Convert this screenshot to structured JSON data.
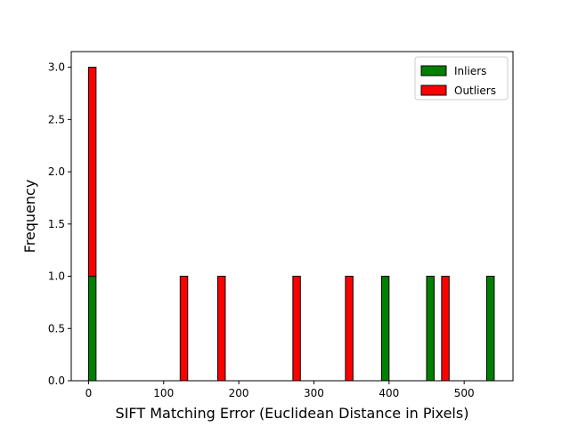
{
  "chart_data": {
    "type": "bar",
    "subtype": "stacked-histogram",
    "title": "",
    "xlabel": "SIFT Matching Error (Euclidean Distance in Pixels)",
    "ylabel": "Frequency",
    "xlim": [
      -23,
      565
    ],
    "ylim": [
      0,
      3.15
    ],
    "xticks": [
      0,
      100,
      200,
      300,
      400,
      500
    ],
    "yticks": [
      0.0,
      0.5,
      1.0,
      1.5,
      2.0,
      2.5,
      3.0
    ],
    "xtick_labels": [
      "0",
      "100",
      "200",
      "300",
      "400",
      "500"
    ],
    "ytick_labels": [
      "0.0",
      "0.5",
      "1.0",
      "1.5",
      "2.0",
      "2.5",
      "3.0"
    ],
    "bin_width": 10,
    "legend_position": "top-right",
    "series": [
      {
        "name": "Inliers",
        "color": "#008000",
        "bins": [
          {
            "x": 0,
            "count": 1
          },
          {
            "x": 390,
            "count": 1
          },
          {
            "x": 450,
            "count": 1
          },
          {
            "x": 530,
            "count": 1
          }
        ]
      },
      {
        "name": "Outliers",
        "color": "#ff0000",
        "bins": [
          {
            "x": 0,
            "count": 2
          },
          {
            "x": 122,
            "count": 1
          },
          {
            "x": 172,
            "count": 1
          },
          {
            "x": 272,
            "count": 1
          },
          {
            "x": 342,
            "count": 1
          },
          {
            "x": 470,
            "count": 1
          }
        ]
      }
    ]
  }
}
